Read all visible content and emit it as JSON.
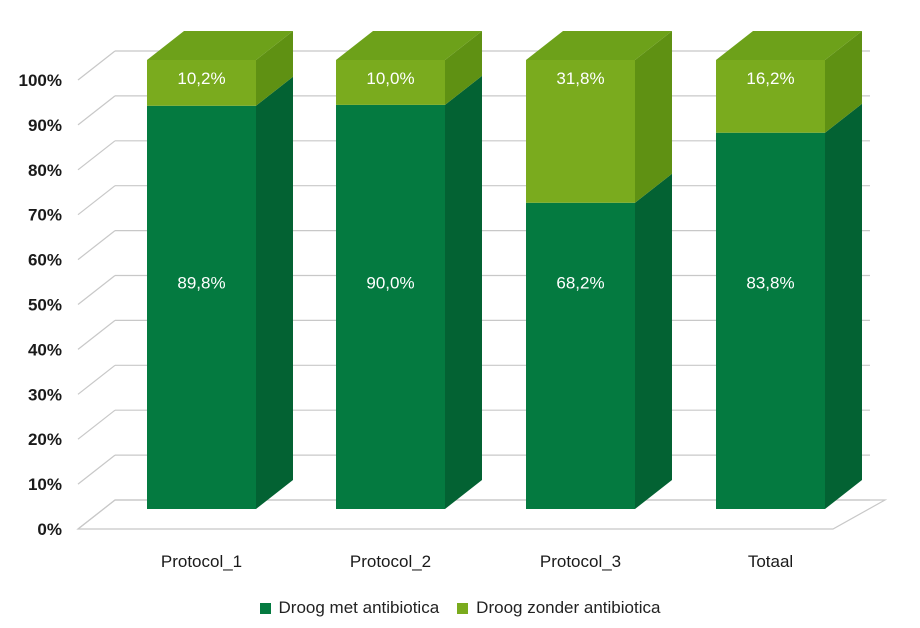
{
  "chart_data": {
    "type": "bar",
    "stacked": true,
    "three_d": true,
    "categories": [
      "Protocol_1",
      "Protocol_2",
      "Protocol_3",
      "Totaal"
    ],
    "series": [
      {
        "name": "Droog met antibiotica",
        "values": [
          89.8,
          90.0,
          68.2,
          83.8
        ],
        "labels": [
          "89,8%",
          "90,0%",
          "68,2%",
          "83,8%"
        ],
        "color": "#047a40",
        "side_color": "#036233",
        "top_color": "#058046"
      },
      {
        "name": "Droog zonder antibiotica",
        "values": [
          10.2,
          10.0,
          31.8,
          16.2
        ],
        "labels": [
          "10,2%",
          "10,0%",
          "31,8%",
          "16,2%"
        ],
        "color": "#7aab1e",
        "side_color": "#5f9113",
        "top_color": "#6da11a"
      }
    ],
    "yticks": [
      "0%",
      "10%",
      "20%",
      "30%",
      "40%",
      "50%",
      "60%",
      "70%",
      "80%",
      "90%",
      "100%"
    ],
    "ylim": [
      0,
      100
    ],
    "grid": true,
    "legend_position": "bottom"
  }
}
